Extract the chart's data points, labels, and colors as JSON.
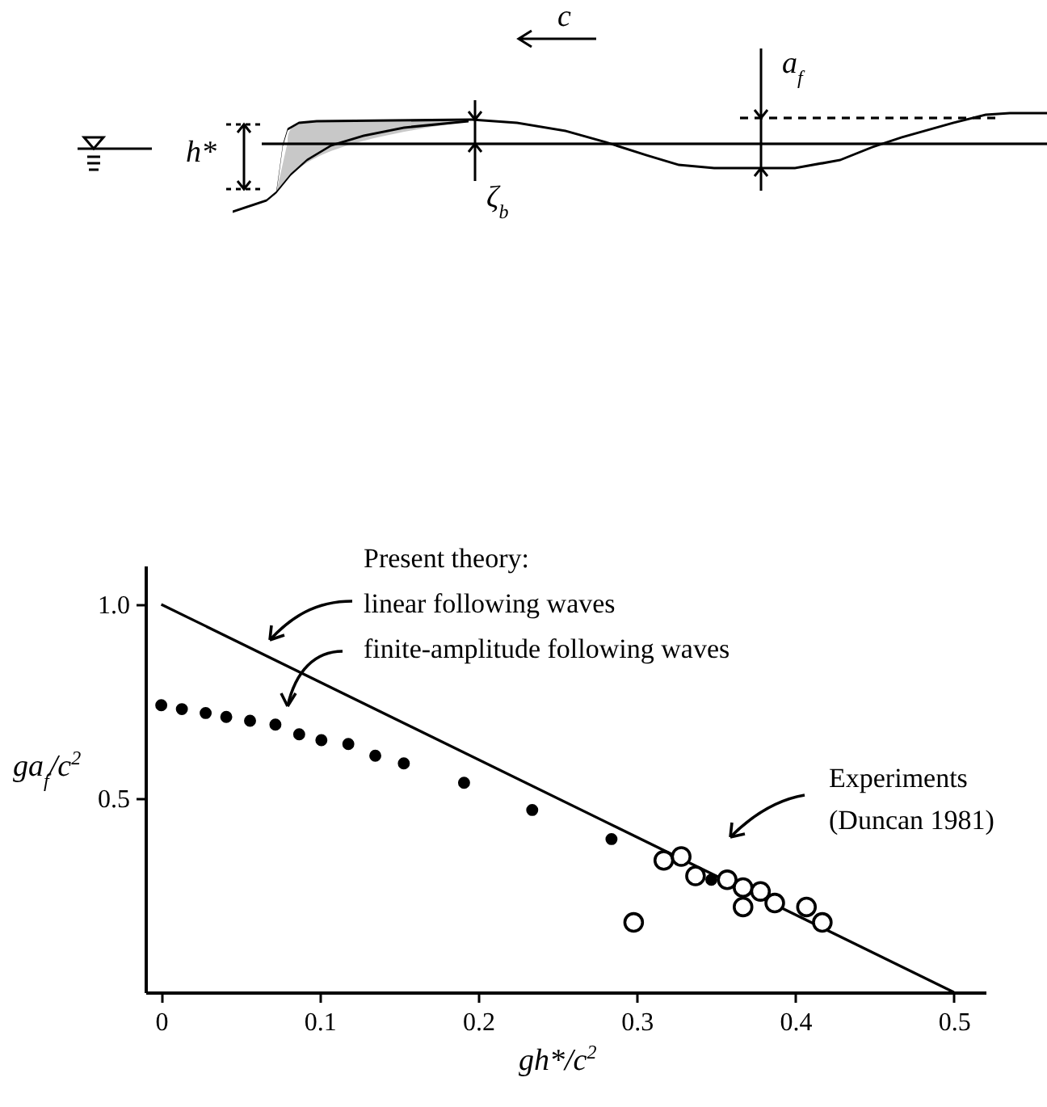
{
  "chart_data": {
    "type": "scatter",
    "xlabel": "gh*/c$^{2}$",
    "ylabel": "ga$_{f}$/c$^{2}$",
    "xlim": [
      -0.01,
      0.52
    ],
    "ylim": [
      0,
      1.1
    ],
    "xticks": [
      0,
      0.1,
      0.2,
      0.3,
      0.4,
      0.5
    ],
    "yticks": [
      {
        "value": 0.5,
        "label": "0.5"
      },
      {
        "value": 1,
        "label": "1.0"
      }
    ],
    "grid": false,
    "marker": "circle",
    "series": [
      {
        "type": "line",
        "color": "#000000",
        "marker": "none",
        "x": [
          0,
          0.5
        ],
        "values": [
          1,
          0
        ]
      },
      {
        "color": "#000000",
        "x": [
          0,
          0.013,
          0.028,
          0.041,
          0.056,
          0.072,
          0.087,
          0.101,
          0.118,
          0.135,
          0.153,
          0.191,
          0.234,
          0.284,
          0.347
        ],
        "values": [
          0.74,
          0.73,
          0.72,
          0.71,
          0.7,
          0.69,
          0.665,
          0.65,
          0.64,
          0.61,
          0.59,
          0.54,
          0.47,
          0.395,
          0.29
        ]
      },
      {
        "color": "#000000",
        "x": [
          0.298,
          0.317,
          0.328,
          0.337,
          0.357,
          0.367,
          0.378,
          0.367,
          0.387,
          0.407,
          0.417
        ],
        "values": [
          0.18,
          0.34,
          0.35,
          0.3,
          0.29,
          0.27,
          0.26,
          0.22,
          0.23,
          0.22,
          0.18
        ]
      }
    ],
    "annotations": [
      "c",
      "h*",
      "ζ$_{b}$",
      "a$_{f}$",
      "Present theory:",
      "linear following waves",
      "finite-amplitude following waves",
      "Experiments",
      "(Duncan 1981)"
    ]
  }
}
